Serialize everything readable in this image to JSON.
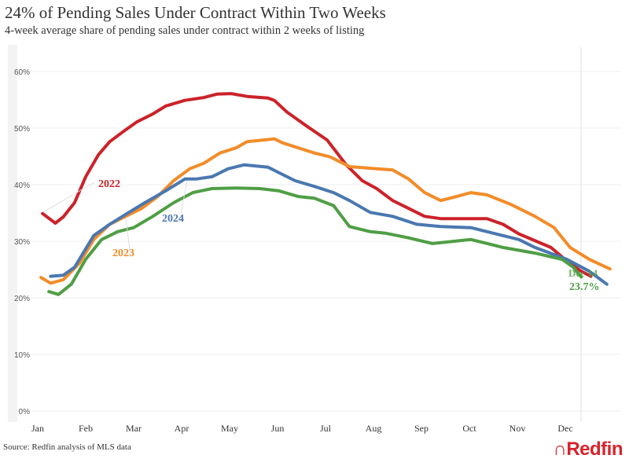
{
  "chart_data": {
    "type": "line",
    "title": "24% of Pending Sales Under Contract Within Two Weeks",
    "subtitle": "4-week average share of pending sales under contract within 2 weeks of listing",
    "x_ticks": [
      "Jan",
      "Feb",
      "Mar",
      "Apr",
      "May",
      "Jun",
      "Jul",
      "Aug",
      "Sep",
      "Oct",
      "Nov",
      "Dec"
    ],
    "y_ticks": [
      "0%",
      "10%",
      "20%",
      "30%",
      "40%",
      "50%",
      "60%"
    ],
    "ylim": [
      0,
      60
    ],
    "grid": "horizontal",
    "series": [
      {
        "name": "2022",
        "color": "#cc2229",
        "points": [
          [
            "01-04",
            34.9
          ],
          [
            "01-12",
            33.2
          ],
          [
            "01-17",
            34.3
          ],
          [
            "01-24",
            36.8
          ],
          [
            "02-01",
            41.4
          ],
          [
            "02-09",
            45.3
          ],
          [
            "02-16",
            47.6
          ],
          [
            "02-26",
            49.7
          ],
          [
            "03-03",
            51.1
          ],
          [
            "03-13",
            52.5
          ],
          [
            "03-21",
            53.9
          ],
          [
            "04-03",
            54.9
          ],
          [
            "04-15",
            55.4
          ],
          [
            "04-23",
            56.0
          ],
          [
            "05-02",
            56.1
          ],
          [
            "05-12",
            55.6
          ],
          [
            "05-25",
            55.3
          ],
          [
            "05-29",
            54.9
          ],
          [
            "06-07",
            52.8
          ],
          [
            "06-19",
            50.4
          ],
          [
            "07-02",
            47.9
          ],
          [
            "07-14",
            43.5
          ],
          [
            "07-24",
            40.7
          ],
          [
            "08-03",
            39.3
          ],
          [
            "08-13",
            37.2
          ],
          [
            "08-23",
            35.8
          ],
          [
            "09-03",
            34.4
          ],
          [
            "09-13",
            34.0
          ],
          [
            "10-02",
            34.0
          ],
          [
            "10-12",
            34.0
          ],
          [
            "10-22",
            33.0
          ],
          [
            "11-02",
            31.3
          ],
          [
            "11-22",
            28.9
          ],
          [
            "12-02",
            26.5
          ],
          [
            "12-11",
            24.7
          ],
          [
            "12-17",
            23.8
          ]
        ]
      },
      {
        "name": "2023",
        "color": "#f28c28",
        "points": [
          [
            "01-03",
            23.6
          ],
          [
            "01-09",
            22.6
          ],
          [
            "01-17",
            23.2
          ],
          [
            "01-27",
            26.1
          ],
          [
            "02-06",
            30.3
          ],
          [
            "02-16",
            33.0
          ],
          [
            "02-26",
            34.4
          ],
          [
            "03-06",
            35.8
          ],
          [
            "03-16",
            37.9
          ],
          [
            "03-26",
            40.7
          ],
          [
            "04-06",
            42.8
          ],
          [
            "04-15",
            43.8
          ],
          [
            "04-25",
            45.6
          ],
          [
            "05-05",
            46.5
          ],
          [
            "05-12",
            47.6
          ],
          [
            "05-29",
            48.1
          ],
          [
            "06-04",
            47.4
          ],
          [
            "06-14",
            46.5
          ],
          [
            "06-24",
            45.6
          ],
          [
            "07-04",
            44.9
          ],
          [
            "07-16",
            43.2
          ],
          [
            "08-03",
            42.8
          ],
          [
            "08-13",
            42.6
          ],
          [
            "08-23",
            41.0
          ],
          [
            "09-03",
            38.6
          ],
          [
            "09-13",
            37.2
          ],
          [
            "09-23",
            37.9
          ],
          [
            "10-02",
            38.6
          ],
          [
            "10-12",
            38.2
          ],
          [
            "10-27",
            36.5
          ],
          [
            "11-12",
            34.4
          ],
          [
            "11-24",
            32.4
          ],
          [
            "12-04",
            28.9
          ],
          [
            "12-16",
            26.8
          ],
          [
            "12-29",
            25.1
          ]
        ]
      },
      {
        "name": "2024",
        "color": "#4a78b0",
        "points": [
          [
            "01-09",
            23.8
          ],
          [
            "01-17",
            24.0
          ],
          [
            "01-24",
            25.4
          ],
          [
            "02-06",
            31.0
          ],
          [
            "02-16",
            33.0
          ],
          [
            "02-28",
            35.1
          ],
          [
            "03-08",
            36.8
          ],
          [
            "03-21",
            38.9
          ],
          [
            "04-03",
            41.0
          ],
          [
            "04-10",
            41.0
          ],
          [
            "04-20",
            41.4
          ],
          [
            "04-30",
            42.8
          ],
          [
            "05-10",
            43.5
          ],
          [
            "05-25",
            43.1
          ],
          [
            "06-02",
            42.1
          ],
          [
            "06-12",
            40.7
          ],
          [
            "06-24",
            39.7
          ],
          [
            "07-06",
            38.6
          ],
          [
            "07-16",
            37.2
          ],
          [
            "07-29",
            35.1
          ],
          [
            "08-13",
            34.4
          ],
          [
            "08-28",
            33.0
          ],
          [
            "09-13",
            32.6
          ],
          [
            "10-02",
            32.4
          ],
          [
            "10-22",
            31.0
          ],
          [
            "11-02",
            30.3
          ],
          [
            "11-12",
            28.9
          ],
          [
            "12-02",
            26.8
          ],
          [
            "12-16",
            24.7
          ],
          [
            "12-27",
            22.4
          ]
        ]
      },
      {
        "color": "#4f9e45",
        "points": [
          [
            "01-08",
            21.1
          ],
          [
            "01-14",
            20.6
          ],
          [
            "01-22",
            22.4
          ],
          [
            "02-01",
            26.8
          ],
          [
            "02-11",
            30.3
          ],
          [
            "02-21",
            31.7
          ],
          [
            "03-01",
            32.4
          ],
          [
            "03-13",
            34.4
          ],
          [
            "03-26",
            36.8
          ],
          [
            "04-08",
            38.6
          ],
          [
            "04-20",
            39.3
          ],
          [
            "05-05",
            39.4
          ],
          [
            "05-20",
            39.3
          ],
          [
            "06-02",
            38.9
          ],
          [
            "06-14",
            37.9
          ],
          [
            "06-24",
            37.6
          ],
          [
            "07-06",
            36.3
          ],
          [
            "07-16",
            32.6
          ],
          [
            "07-29",
            31.7
          ],
          [
            "08-09",
            31.4
          ],
          [
            "08-23",
            30.6
          ],
          [
            "09-08",
            29.6
          ],
          [
            "10-02",
            30.3
          ],
          [
            "10-22",
            28.9
          ],
          [
            "11-12",
            27.9
          ],
          [
            "11-29",
            26.8
          ],
          [
            "12-06",
            25.4
          ],
          [
            "12-11",
            23.7
          ]
        ]
      }
    ],
    "annotations": {
      "date": "Dec 14",
      "value": "23.7%"
    }
  },
  "source": "Source: Redfin analysis of MLS data",
  "logo": "Redfin"
}
